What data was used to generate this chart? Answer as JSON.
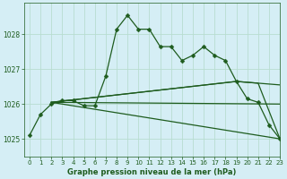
{
  "title": "Graphe pression niveau de la mer (hPa)",
  "bg_color": "#d5eef5",
  "grid_color": "#b8ddd0",
  "line_color": "#1e5c1e",
  "xlim": [
    -0.5,
    23
  ],
  "ylim": [
    1024.5,
    1028.9
  ],
  "yticks": [
    1025,
    1026,
    1027,
    1028
  ],
  "xticks": [
    0,
    1,
    2,
    3,
    4,
    5,
    6,
    7,
    8,
    9,
    10,
    11,
    12,
    13,
    14,
    15,
    16,
    17,
    18,
    19,
    20,
    21,
    22,
    23
  ],
  "series": [
    {
      "x": [
        0,
        1,
        2,
        3,
        4,
        5,
        6,
        7,
        8,
        9,
        10,
        11,
        12,
        13,
        14,
        15,
        16,
        17,
        18,
        19,
        20,
        21,
        22,
        23
      ],
      "y": [
        1025.1,
        1025.7,
        1026.0,
        1026.1,
        1026.1,
        1025.95,
        1025.95,
        1026.8,
        1028.15,
        1028.55,
        1028.15,
        1028.15,
        1027.65,
        1027.65,
        1027.25,
        1027.4,
        1027.65,
        1027.4,
        1027.25,
        1026.65,
        1026.15,
        1026.05,
        1025.4,
        1025.0
      ],
      "has_markers": true
    },
    {
      "x": [
        2,
        23
      ],
      "y": [
        1026.05,
        1026.0
      ],
      "has_markers": false
    },
    {
      "x": [
        2,
        19,
        23
      ],
      "y": [
        1026.05,
        1026.65,
        1026.55
      ],
      "has_markers": false
    },
    {
      "x": [
        2,
        19,
        21,
        23
      ],
      "y": [
        1026.05,
        1026.65,
        1026.6,
        1025.0
      ],
      "has_markers": false
    },
    {
      "x": [
        2,
        23
      ],
      "y": [
        1026.05,
        1025.0
      ],
      "has_markers": false
    }
  ]
}
